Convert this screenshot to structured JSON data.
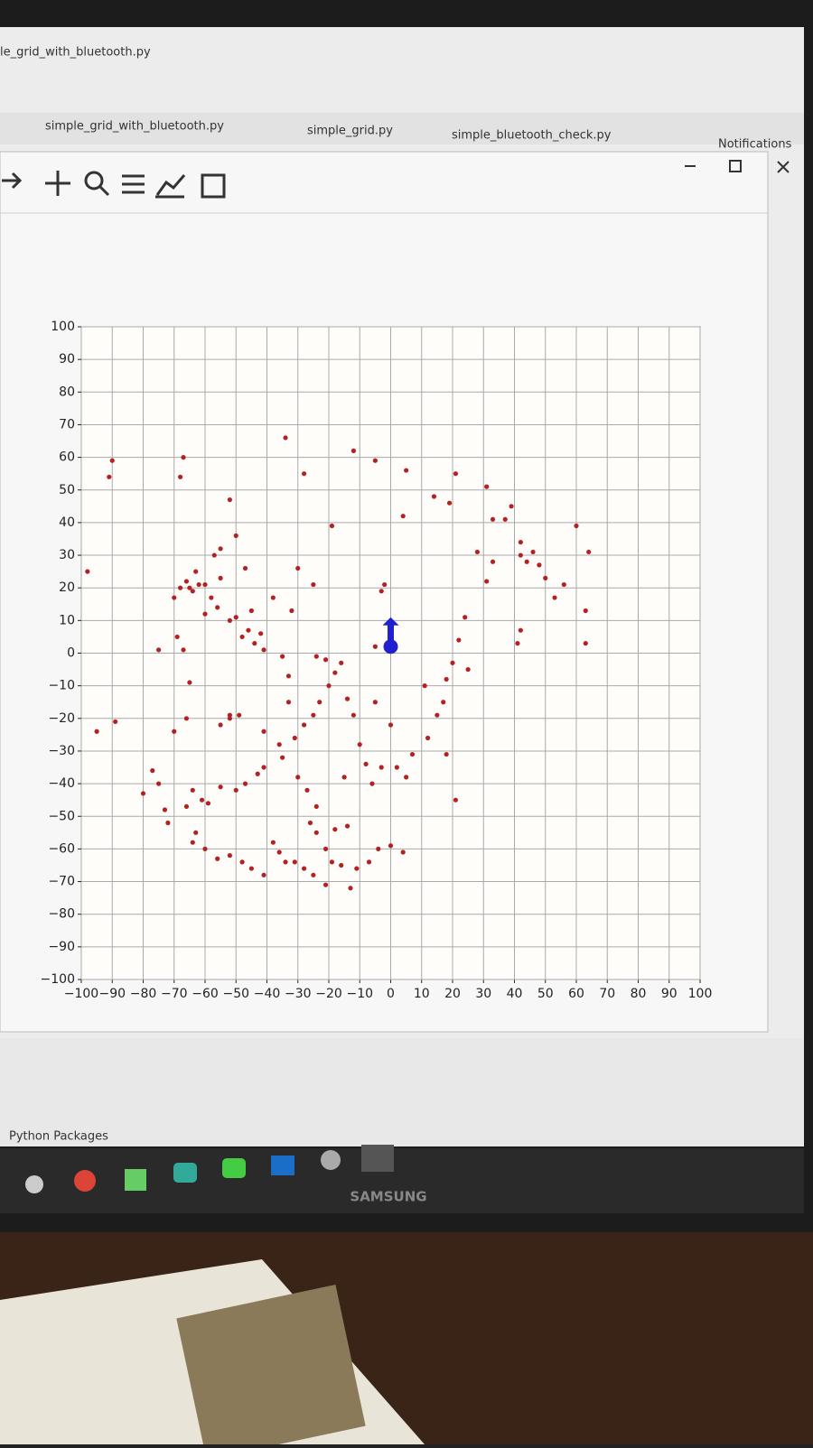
{
  "window": {
    "file_title": "le_grid_with_bluetooth.py",
    "tabs": [
      "simple_grid_with_bluetooth.py",
      "simple_grid.py",
      "simple_bluetooth_check.py"
    ],
    "notifications": "Notifications",
    "panel": "Python Packages"
  },
  "monitor": {
    "brand": "SAMSUNG"
  },
  "chart_data": {
    "type": "scatter",
    "color": "#b22222",
    "grid": true,
    "xlim": [
      -100,
      100
    ],
    "ylim": [
      -100,
      100
    ],
    "xticks": [
      {
        "value": -100,
        "label": "−100"
      },
      {
        "value": -90,
        "label": "−90"
      },
      {
        "value": -80,
        "label": "−80"
      },
      {
        "value": -70,
        "label": "−70"
      },
      {
        "value": -60,
        "label": "−60"
      },
      {
        "value": -50,
        "label": "−50"
      },
      {
        "value": -40,
        "label": "−40"
      },
      {
        "value": -30,
        "label": "−30"
      },
      {
        "value": -20,
        "label": "−20"
      },
      {
        "value": -10,
        "label": "−10"
      },
      0,
      10,
      20,
      30,
      40,
      50,
      60,
      70,
      80,
      90,
      100
    ],
    "yticks": [
      {
        "value": -100,
        "label": "−100"
      },
      {
        "value": -90,
        "label": "−90"
      },
      {
        "value": -80,
        "label": "−80"
      },
      {
        "value": -70,
        "label": "−70"
      },
      {
        "value": -60,
        "label": "−60"
      },
      {
        "value": -50,
        "label": "−50"
      },
      {
        "value": -40,
        "label": "−40"
      },
      {
        "value": -30,
        "label": "−30"
      },
      {
        "value": -20,
        "label": "−20"
      },
      {
        "value": -10,
        "label": "−10"
      },
      0,
      10,
      20,
      30,
      40,
      50,
      60,
      70,
      80,
      90,
      100
    ],
    "x": [
      -90,
      -91,
      -67,
      -68,
      -98,
      -95,
      -89,
      -75,
      -69,
      -67,
      -70,
      -68,
      -66,
      -64,
      -62,
      -60,
      -58,
      -56,
      -55,
      -57,
      -55,
      -52,
      -50,
      -48,
      -46,
      -44,
      -42,
      -45,
      -47,
      -50,
      -52,
      -65,
      -63,
      -60,
      -65,
      -70,
      -66,
      -55,
      -52,
      -49,
      -77,
      -75,
      -80,
      -73,
      -72,
      -64,
      -61,
      -59,
      -55,
      -50,
      -47,
      -43,
      -41,
      -66,
      -63,
      -64,
      -60,
      -56,
      -52,
      -48,
      -45,
      -41,
      -38,
      -36,
      -34,
      -31,
      -28,
      -25,
      -21,
      -19,
      -16,
      -13,
      -11,
      -7,
      -4,
      0,
      4,
      -26,
      -24,
      -21,
      -18,
      -14,
      -30,
      -27,
      -24,
      -35,
      -36,
      -31,
      -28,
      -25,
      -23,
      -20,
      -18,
      -16,
      -21,
      -24,
      -14,
      -12,
      -10,
      -8,
      -15,
      -6,
      -3,
      2,
      5,
      7,
      12,
      15,
      17,
      18,
      20,
      22,
      24,
      25,
      18,
      21,
      -41,
      -35,
      -33,
      -38,
      -32,
      -30,
      -25,
      -19,
      -28,
      -34,
      -12,
      -5,
      5,
      4,
      14,
      19,
      21,
      28,
      31,
      33,
      31,
      33,
      37,
      39,
      42,
      42,
      44,
      46,
      48,
      50,
      53,
      56,
      60,
      63,
      64,
      63,
      42,
      41,
      11,
      -5,
      0,
      -2,
      -3,
      0,
      -5,
      -41,
      -33,
      -52
    ],
    "values": [
      59,
      54,
      60,
      54,
      25,
      -24,
      -21,
      1,
      5,
      1,
      17,
      20,
      22,
      19,
      21,
      21,
      17,
      14,
      23,
      30,
      32,
      10,
      11,
      5,
      7,
      3,
      6,
      13,
      26,
      36,
      47,
      20,
      25,
      12,
      -9,
      -24,
      -20,
      -22,
      -19,
      -19,
      -36,
      -40,
      -43,
      -48,
      -52,
      -42,
      -45,
      -46,
      -41,
      -42,
      -40,
      -37,
      -35,
      -47,
      -55,
      -58,
      -60,
      -63,
      -62,
      -64,
      -66,
      -68,
      -58,
      -61,
      -64,
      -64,
      -66,
      -68,
      -71,
      -64,
      -65,
      -72,
      -66,
      -64,
      -60,
      -59,
      -61,
      -52,
      -55,
      -60,
      -54,
      -53,
      -38,
      -42,
      -47,
      -32,
      -28,
      -26,
      -22,
      -19,
      -15,
      -10,
      -6,
      -3,
      -2,
      -1,
      -14,
      -19,
      -28,
      -34,
      -38,
      -40,
      -35,
      -35,
      -38,
      -31,
      -26,
      -19,
      -15,
      -8,
      -3,
      4,
      11,
      -5,
      -31,
      -45,
      1,
      -1,
      -7,
      17,
      13,
      26,
      21,
      39,
      55,
      66,
      62,
      59,
      56,
      42,
      48,
      46,
      55,
      31,
      22,
      28,
      51,
      41,
      41,
      45,
      34,
      30,
      28,
      31,
      27,
      23,
      17,
      21,
      39,
      13,
      31,
      3,
      7,
      3,
      -10,
      -15,
      -22,
      21,
      19,
      7,
      2,
      -24,
      -15,
      -20
    ],
    "marker": {
      "x": 0,
      "y": 2,
      "dy": 9,
      "color": "#2020d0"
    }
  }
}
